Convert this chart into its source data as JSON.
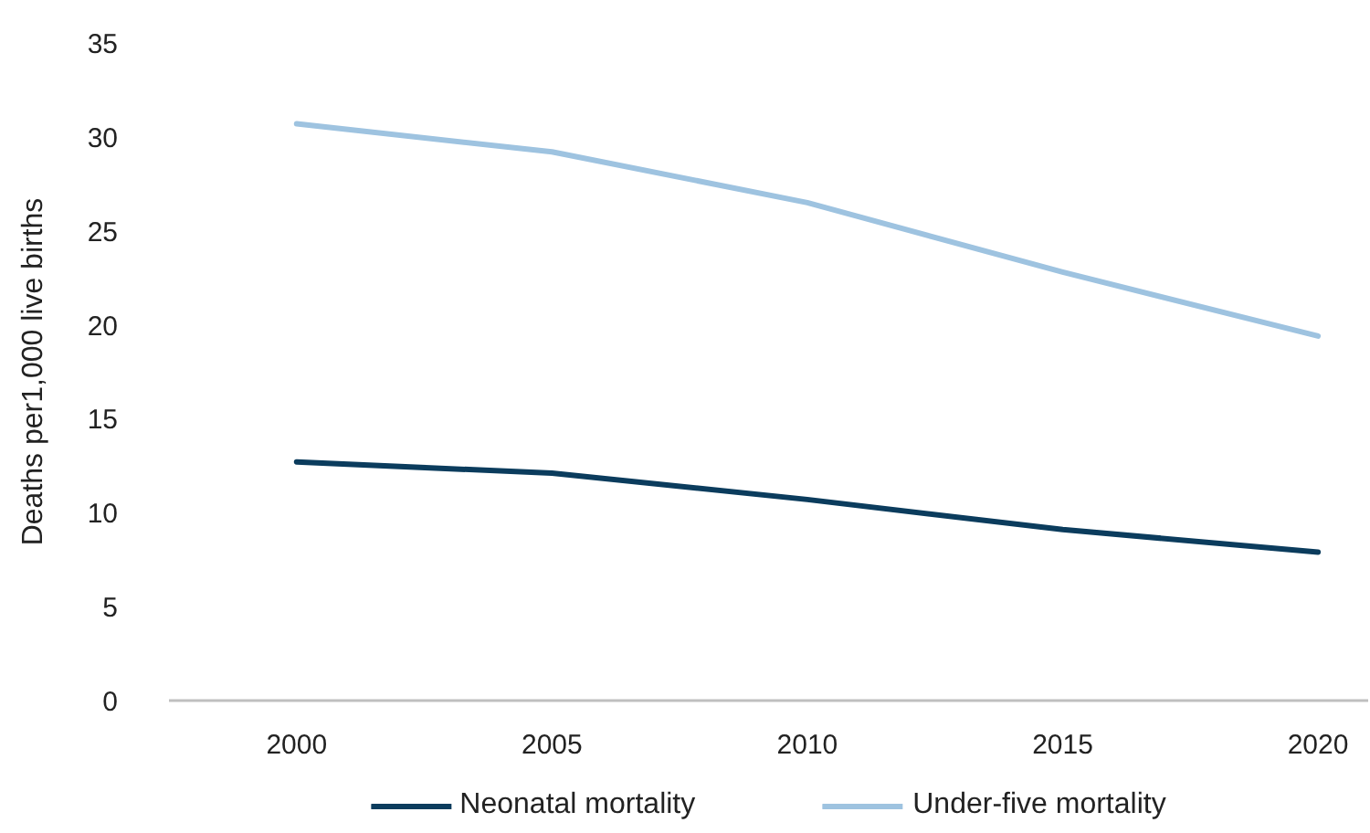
{
  "chart_data": {
    "type": "line",
    "ylabel": "Deaths per1,000 live births",
    "categories": [
      "2000",
      "2005",
      "2010",
      "2015",
      "2020"
    ],
    "series": [
      {
        "name": "Neonatal mortality",
        "color": "#0b3c5d",
        "values": [
          12.7,
          12.1,
          10.7,
          9.1,
          7.9
        ]
      },
      {
        "name": "Under-five mortality",
        "color": "#9ec3e0",
        "values": [
          30.7,
          29.2,
          26.5,
          22.8,
          19.4
        ]
      }
    ],
    "ylim": [
      0,
      35
    ],
    "yticks": [
      0,
      5,
      10,
      15,
      20,
      25,
      30,
      35
    ],
    "grid": false,
    "legend": "bottom"
  }
}
